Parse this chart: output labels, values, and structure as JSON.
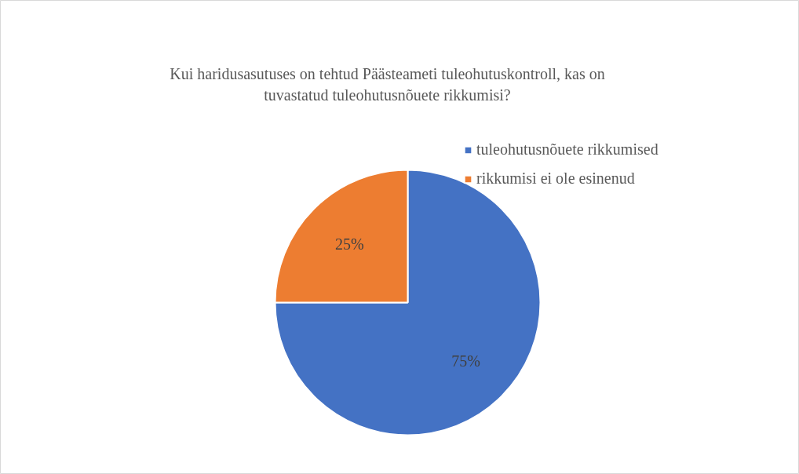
{
  "chart_data": {
    "type": "pie",
    "title": "Kui haridusasutuses on tehtud Päästeameti tuleohutuskontroll, kas on\ntuvastatud tuleohutusnõuete rikkumisi?",
    "categories": [
      "tuleohutusnõuete rikkumised",
      "rikkumisi ei ole esinenud"
    ],
    "values": [
      75,
      25
    ],
    "colors": [
      "#4472c4",
      "#ed7d31"
    ],
    "value_labels": [
      "75%",
      "25%"
    ],
    "legend": "top right"
  }
}
